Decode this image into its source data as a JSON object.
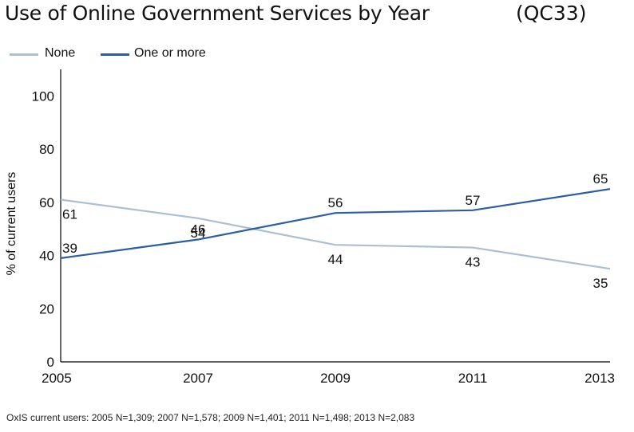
{
  "title": "Use of Online Government Services by Year",
  "question_code": "(QC33)",
  "footnote": "OxIS current users: 2005 N=1,309; 2007 N=1,578; 2009 N=1,401; 2011 N=1,498; 2013 N=2,083",
  "colors": {
    "none": "#a9bfd6",
    "one_or_more": "#2c5ea3",
    "axis": "#000000"
  },
  "chart_data": {
    "type": "line",
    "title": "Use of Online Government Services by Year",
    "xlabel": "",
    "ylabel": "% of current users",
    "x": [
      "2005",
      "2007",
      "2009",
      "2011",
      "2013"
    ],
    "ylim": [
      0,
      110
    ],
    "yticks": [
      0,
      20,
      40,
      60,
      80,
      100
    ],
    "grid": false,
    "legend_position": "top-left",
    "series": [
      {
        "name": "None",
        "values": [
          61,
          54,
          44,
          43,
          35
        ],
        "color": "#a9bfd6",
        "label_position": "below"
      },
      {
        "name": "One or more",
        "values": [
          39,
          46,
          56,
          57,
          65
        ],
        "color": "#2c5ea3",
        "label_position": "above"
      }
    ]
  }
}
